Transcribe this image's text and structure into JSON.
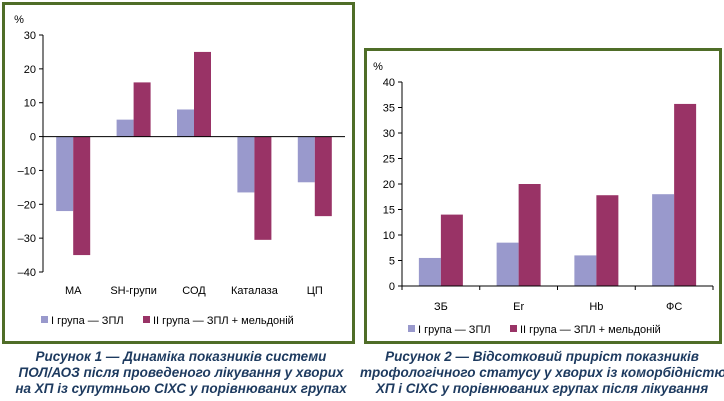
{
  "colors": {
    "series1": "#9999cc",
    "series2": "#993366",
    "border": "#4f6d28",
    "caption": "#1d3a5f"
  },
  "chart_data": [
    {
      "type": "bar",
      "ylabel": "%",
      "ylim": [
        -40,
        30
      ],
      "yticks": [
        30,
        20,
        10,
        0,
        -10,
        -20,
        -30,
        -40
      ],
      "ytick_labels": [
        "30",
        "20",
        "10",
        "0",
        "–10",
        "–20",
        "–30",
        "–40"
      ],
      "categories": [
        "МА",
        "SH-групи",
        "СОД",
        "Каталаза",
        "ЦП"
      ],
      "series": [
        {
          "name": "І група — ЗПЛ",
          "values": [
            -22,
            5,
            8,
            -16.5,
            -13.5
          ]
        },
        {
          "name": "ІІ група — ЗПЛ + мельдоній",
          "values": [
            -35,
            16,
            25,
            -30.5,
            -23.5
          ]
        }
      ],
      "grid": false,
      "legend": "bottom-left"
    },
    {
      "type": "bar",
      "ylabel": "%",
      "ylim": [
        0,
        40
      ],
      "yticks": [
        40,
        35,
        30,
        25,
        20,
        15,
        10,
        5,
        0
      ],
      "ytick_labels": [
        "40",
        "35",
        "30",
        "25",
        "20",
        "15",
        "10",
        "5",
        "0"
      ],
      "categories": [
        "ЗБ",
        "Er",
        "Hb",
        "ФС"
      ],
      "series": [
        {
          "name": "І група — ЗПЛ",
          "values": [
            5.5,
            8.5,
            6,
            18
          ]
        },
        {
          "name": "ІІ група — ЗПЛ + мельдоній",
          "values": [
            14,
            20,
            17.8,
            35.7
          ]
        }
      ],
      "grid": false,
      "legend": "bottom-left"
    }
  ],
  "captions": [
    {
      "lines": [
        "Рисунок 1 — Динаміка показників системи",
        "ПОЛ/АОЗ після проведеного лікування у хворих",
        "на ХП із супутньою СІХС у порівнюваних групах"
      ]
    },
    {
      "lines": [
        "Рисунок 2 — Відсотковий приріст показників",
        "трофологічного статусу у хворих із коморбідністю",
        "ХП і СІХС у порівнюваних групах після лікування"
      ]
    }
  ]
}
